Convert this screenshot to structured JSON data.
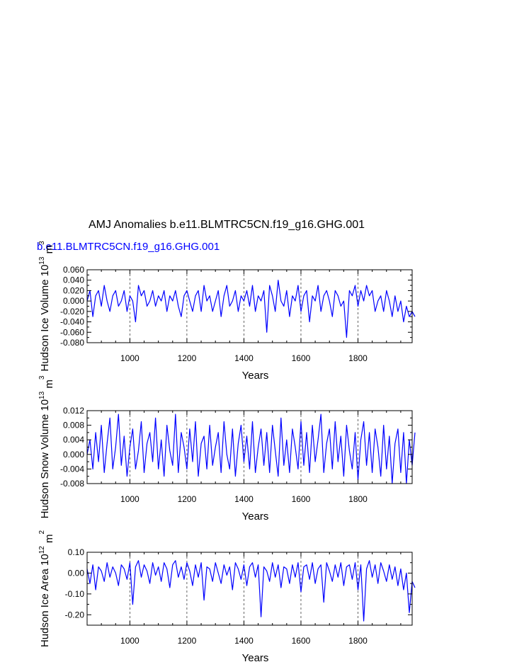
{
  "title": "AMJ Anomalies b.e11.BLMTRC5CN.f19_g16.GHG.001",
  "subtitle": "b.e11.BLMTRC5CN.f19_g16.GHG.001",
  "colors": {
    "series": "#0000ff",
    "text": "#000000",
    "subtitle": "#0000ff"
  },
  "chart_data": [
    {
      "type": "line",
      "ylabel": "Hudson Ice Volume 10",
      "ylabel_exp": "13",
      "ylabel_unit": " m",
      "ylabel_unit_exp": "3",
      "xlabel": "Years",
      "xlim": [
        850,
        1990
      ],
      "ylim": [
        -0.08,
        0.06
      ],
      "xticks": [
        1000,
        1200,
        1400,
        1600,
        1800
      ],
      "xtick_labels": [
        "1000",
        "1200",
        "1400",
        "1600",
        "1800"
      ],
      "yticks": [
        -0.08,
        -0.06,
        -0.04,
        -0.02,
        0.0,
        0.02,
        0.04,
        0.06
      ],
      "ytick_labels": [
        "-0.080",
        "-0.060",
        "-0.040",
        "-0.020",
        "0.000",
        "0.020",
        "0.040",
        "0.060"
      ],
      "grid": "vertical dashed at major ticks",
      "series": [
        {
          "x_start": 850,
          "x_end": 1990,
          "x_step": 10,
          "values": [
            0.0,
            0.02,
            -0.03,
            0.01,
            0.02,
            -0.01,
            0.03,
            0.0,
            -0.02,
            0.01,
            0.02,
            -0.01,
            0.0,
            0.02,
            -0.02,
            0.01,
            0.0,
            -0.04,
            0.03,
            0.01,
            0.02,
            -0.01,
            0.0,
            0.02,
            -0.01,
            0.01,
            0.0,
            0.02,
            -0.02,
            0.01,
            0.0,
            0.02,
            -0.01,
            -0.03,
            0.01,
            0.02,
            0.0,
            -0.02,
            0.01,
            0.02,
            -0.02,
            0.03,
            0.0,
            0.01,
            -0.02,
            0.0,
            0.02,
            -0.03,
            0.01,
            0.03,
            -0.01,
            0.0,
            0.02,
            -0.02,
            0.01,
            0.0,
            0.02,
            -0.01,
            0.03,
            -0.02,
            0.01,
            0.0,
            0.02,
            -0.06,
            0.03,
            0.01,
            -0.02,
            0.04,
            0.0,
            -0.01,
            0.02,
            -0.03,
            0.01,
            0.0,
            0.03,
            -0.02,
            0.01,
            0.02,
            -0.04,
            0.01,
            0.0,
            0.03,
            -0.02,
            0.01,
            0.02,
            0.0,
            -0.03,
            0.02,
            0.01,
            -0.01,
            0.0,
            -0.07,
            0.02,
            0.01,
            0.03,
            -0.01,
            0.02,
            0.0,
            0.03,
            0.01,
            0.02,
            -0.02,
            0.0,
            0.01,
            -0.02,
            0.02,
            0.0,
            -0.03,
            0.01,
            -0.02,
            0.0,
            -0.04,
            -0.01,
            -0.03,
            -0.02,
            -0.03
          ]
        }
      ]
    },
    {
      "type": "line",
      "ylabel": "Hudson Snow Volume 10",
      "ylabel_exp": "13",
      "ylabel_unit": " m",
      "ylabel_unit_exp": "3",
      "xlabel": "Years",
      "xlim": [
        850,
        1990
      ],
      "ylim": [
        -0.008,
        0.012
      ],
      "xticks": [
        1000,
        1200,
        1400,
        1600,
        1800
      ],
      "xtick_labels": [
        "1000",
        "1200",
        "1400",
        "1600",
        "1800"
      ],
      "yticks": [
        -0.008,
        -0.004,
        0.0,
        0.004,
        0.008,
        0.012
      ],
      "ytick_labels": [
        "-0.008",
        "-0.004",
        "0.000",
        "0.004",
        "0.008",
        "0.012"
      ],
      "grid": "vertical dashed at major ticks",
      "series": [
        {
          "x_start": 850,
          "x_end": 1990,
          "x_step": 10,
          "values": [
            0.0,
            0.004,
            -0.004,
            0.006,
            -0.002,
            0.008,
            -0.005,
            0.003,
            0.01,
            -0.004,
            0.002,
            0.011,
            -0.003,
            0.005,
            -0.006,
            0.002,
            0.007,
            -0.004,
            0.001,
            0.009,
            -0.005,
            0.003,
            0.006,
            -0.002,
            0.01,
            -0.004,
            0.004,
            -0.006,
            0.008,
            0.001,
            -0.003,
            0.011,
            -0.005,
            0.006,
            0.002,
            -0.004,
            0.007,
            -0.002,
            0.009,
            -0.006,
            0.003,
            0.005,
            -0.004,
            0.008,
            -0.003,
            0.002,
            0.006,
            -0.005,
            0.009,
            0.0,
            -0.004,
            0.007,
            -0.006,
            0.003,
            0.008,
            -0.002,
            0.005,
            -0.004,
            0.009,
            -0.005,
            0.002,
            0.007,
            -0.003,
            0.006,
            -0.005,
            0.008,
            0.001,
            -0.006,
            0.01,
            -0.003,
            0.004,
            -0.005,
            0.007,
            0.002,
            -0.004,
            0.009,
            -0.003,
            0.006,
            -0.005,
            0.008,
            -0.002,
            0.004,
            0.011,
            -0.005,
            0.003,
            0.007,
            -0.004,
            0.009,
            -0.002,
            0.005,
            -0.006,
            0.008,
            0.001,
            -0.004,
            0.006,
            -0.007,
            0.004,
            0.009,
            -0.003,
            0.006,
            -0.005,
            0.007,
            0.002,
            -0.006,
            0.008,
            -0.004,
            0.005,
            -0.008,
            0.003,
            0.007,
            -0.005,
            0.006,
            -0.008,
            0.004,
            -0.003,
            0.006
          ]
        }
      ]
    },
    {
      "type": "line",
      "ylabel": "Hudson Ice Area 10",
      "ylabel_exp": "12",
      "ylabel_unit": " m",
      "ylabel_unit_exp": "2",
      "xlabel": "Years",
      "xlim": [
        850,
        1990
      ],
      "ylim": [
        -0.25,
        0.1
      ],
      "xticks": [
        1000,
        1200,
        1400,
        1600,
        1800
      ],
      "xtick_labels": [
        "1000",
        "1200",
        "1400",
        "1600",
        "1800"
      ],
      "yticks": [
        -0.2,
        -0.1,
        0.0,
        0.1
      ],
      "ytick_labels": [
        "-0.20",
        "-0.10",
        "0.00",
        "0.10"
      ],
      "grid": "vertical dashed at major ticks",
      "series": [
        {
          "x_start": 850,
          "x_end": 1990,
          "x_step": 10,
          "values": [
            0.02,
            -0.05,
            0.04,
            -0.08,
            0.03,
            0.01,
            -0.04,
            0.05,
            -0.02,
            0.03,
            0.0,
            -0.06,
            0.04,
            0.02,
            -0.03,
            0.05,
            -0.15,
            0.03,
            0.06,
            -0.02,
            0.04,
            0.01,
            -0.05,
            0.05,
            -0.01,
            0.03,
            -0.04,
            0.05,
            0.02,
            -0.07,
            0.04,
            0.06,
            -0.02,
            0.03,
            -0.03,
            0.05,
            0.01,
            -0.06,
            0.04,
            -0.02,
            0.05,
            -0.13,
            0.03,
            0.02,
            -0.04,
            0.05,
            0.0,
            -0.05,
            0.04,
            -0.01,
            0.03,
            -0.08,
            0.05,
            0.02,
            -0.03,
            0.04,
            -0.06,
            0.03,
            0.05,
            -0.02,
            0.04,
            -0.21,
            0.03,
            0.01,
            -0.04,
            0.05,
            -0.02,
            0.04,
            -0.07,
            0.03,
            0.02,
            -0.05,
            0.04,
            -0.02,
            0.05,
            -0.09,
            0.03,
            0.04,
            -0.03,
            0.05,
            -0.05,
            0.02,
            0.04,
            -0.14,
            0.05,
            0.01,
            -0.04,
            0.04,
            -0.02,
            0.05,
            -0.06,
            0.03,
            0.04,
            -0.03,
            0.05,
            -0.08,
            0.04,
            -0.23,
            0.02,
            0.06,
            -0.02,
            0.04,
            -0.05,
            0.05,
            0.01,
            -0.04,
            0.04,
            -0.03,
            0.03,
            -0.06,
            0.02,
            -0.08,
            0.0,
            -0.19,
            -0.04,
            -0.07
          ]
        }
      ]
    }
  ]
}
